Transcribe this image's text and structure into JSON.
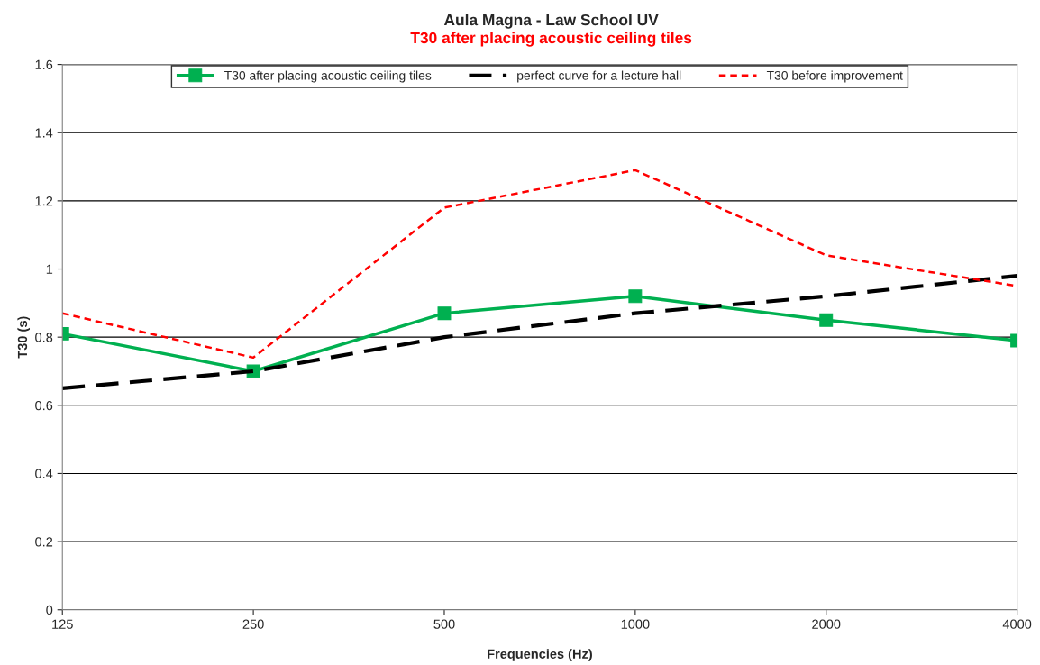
{
  "chart_data": {
    "type": "line",
    "title": "Aula Magna - Law School UV",
    "subtitle": "T30 after placing acoustic ceiling tiles",
    "xlabel": "Frequencies (Hz)",
    "ylabel": "T30 (s)",
    "categories": [
      "125",
      "250",
      "500",
      "1000",
      "2000",
      "4000"
    ],
    "series": [
      {
        "name": "T30 after placing acoustic ceiling tiles",
        "color": "#00b050",
        "marker": "square",
        "line_style": "solid",
        "values": [
          0.81,
          0.7,
          0.87,
          0.92,
          0.85,
          0.79
        ]
      },
      {
        "name": "perfect curve for a lecture hall",
        "color": "#000000",
        "marker": "none",
        "line_style": "dashed",
        "values": [
          0.65,
          0.7,
          0.8,
          0.87,
          0.92,
          0.98
        ]
      },
      {
        "name": "T30 before improvement",
        "color": "#ff0000",
        "marker": "none",
        "line_style": "dotted",
        "values": [
          0.87,
          0.74,
          1.18,
          1.29,
          1.04,
          0.95
        ]
      }
    ],
    "ylim": [
      0,
      1.6
    ],
    "yticks": [
      0,
      0.2,
      0.4,
      0.6,
      0.8,
      1,
      1.2,
      1.4,
      1.6
    ],
    "grid": "y",
    "legend": "top"
  }
}
